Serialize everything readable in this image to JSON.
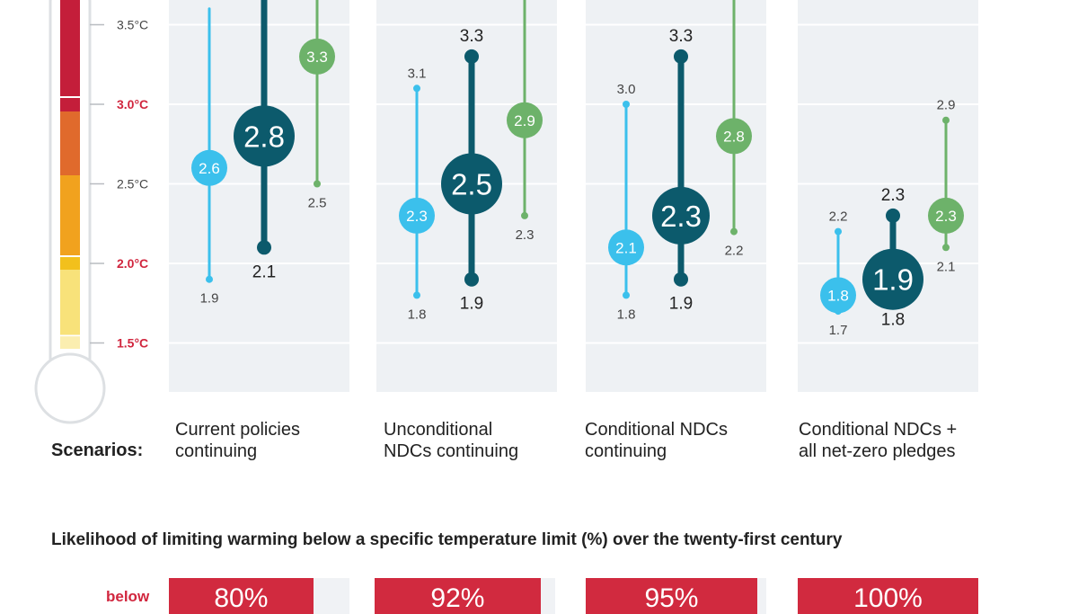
{
  "colors": {
    "red_label": "#d1263e",
    "panel_bg": "#eef1f4",
    "series_light": "#3bc0ec",
    "series_dark": "#0c5a6c",
    "series_green": "#6db26a",
    "prob_box": "#d12a3f"
  },
  "chart_data": {
    "type": "range-dot",
    "y_unit": "°C",
    "ylim": [
      1.2,
      3.7
    ],
    "temperature_ticks": [
      {
        "value": 3.5,
        "label": "3.5°C",
        "highlight": false
      },
      {
        "value": 3.0,
        "label": "3.0°C",
        "highlight": true
      },
      {
        "value": 2.5,
        "label": "2.5°C",
        "highlight": false
      },
      {
        "value": 2.0,
        "label": "2.0°C",
        "highlight": true
      },
      {
        "value": 1.5,
        "label": "1.5°C",
        "highlight": true
      }
    ],
    "scenarios_heading": "Scenarios:",
    "scenarios": [
      {
        "name": "Current policies\ncontinuing",
        "series": [
          {
            "color": "light",
            "center": 2.6,
            "low": 1.9,
            "high": 3.6,
            "center_label": "2.6",
            "low_label": "1.9",
            "high_label": null
          },
          {
            "color": "dark",
            "center": 2.8,
            "low": 2.1,
            "high": 3.8,
            "center_label": "2.8",
            "low_label": "2.1",
            "high_label": null
          },
          {
            "color": "green",
            "center": 3.3,
            "low": 2.5,
            "high": 3.8,
            "center_label": "3.3",
            "low_label": "2.5",
            "high_label": null
          }
        ]
      },
      {
        "name": "Unconditional\nNDCs continuing",
        "series": [
          {
            "color": "light",
            "center": 2.3,
            "low": 1.8,
            "high": 3.1,
            "center_label": "2.3",
            "low_label": "1.8",
            "high_label": "3.1"
          },
          {
            "color": "dark",
            "center": 2.5,
            "low": 1.9,
            "high": 3.3,
            "center_label": "2.5",
            "low_label": "1.9",
            "high_label": "3.3"
          },
          {
            "color": "green",
            "center": 2.9,
            "low": 2.3,
            "high": 3.8,
            "center_label": "2.9",
            "low_label": "2.3",
            "high_label": null
          }
        ]
      },
      {
        "name": "Conditional NDCs\ncontinuing",
        "series": [
          {
            "color": "light",
            "center": 2.1,
            "low": 1.8,
            "high": 3.0,
            "center_label": "2.1",
            "low_label": "1.8",
            "high_label": "3.0"
          },
          {
            "color": "dark",
            "center": 2.3,
            "low": 1.9,
            "high": 3.3,
            "center_label": "2.3",
            "low_label": "1.9",
            "high_label": "3.3"
          },
          {
            "color": "green",
            "center": 2.8,
            "low": 2.2,
            "high": 3.8,
            "center_label": "2.8",
            "low_label": "2.2",
            "high_label": null
          }
        ]
      },
      {
        "name": "Conditional NDCs +\nall net-zero pledges",
        "series": [
          {
            "color": "light",
            "center": 1.8,
            "low": 1.7,
            "high": 2.2,
            "center_label": "1.8",
            "low_label": "1.7",
            "high_label": "2.2"
          },
          {
            "color": "dark",
            "center": 1.9,
            "low": 1.8,
            "high": 2.3,
            "center_label": "1.9",
            "low_label": "1.8",
            "high_label": "2.3"
          },
          {
            "color": "green",
            "center": 2.3,
            "low": 2.1,
            "high": 2.9,
            "center_label": "2.3",
            "low_label": "2.1",
            "high_label": "2.9"
          }
        ]
      }
    ],
    "likelihood": {
      "title": "Likelihood of limiting warming below a specific temperature limit (%) over the twenty-first century",
      "row_label": "below",
      "values": [
        {
          "label": "80%",
          "value": 80
        },
        {
          "label": "92%",
          "value": 92
        },
        {
          "label": "95%",
          "value": 95
        },
        {
          "label": "100%",
          "value": 100
        }
      ]
    }
  }
}
